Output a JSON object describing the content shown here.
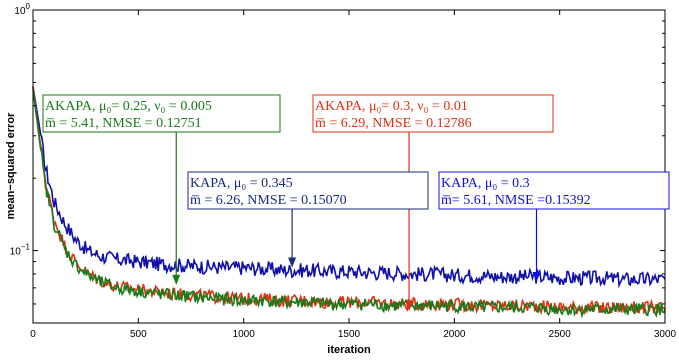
{
  "chart_data": {
    "type": "line",
    "title": "",
    "xlabel": "iteration",
    "ylabel": "mean−squared error",
    "xlim": [
      0,
      3000
    ],
    "ylim": [
      0.05,
      1
    ],
    "yscale": "log",
    "grid": false,
    "x_ticks": [
      0,
      500,
      1000,
      1500,
      2000,
      2500,
      3000
    ],
    "x_tick_labels": [
      "0",
      "500",
      "1000",
      "1500",
      "2000",
      "2500",
      "3000"
    ],
    "y_tick_labels": [
      {
        "value": 1,
        "base": "10",
        "exp": "0"
      },
      {
        "value": 0.1,
        "base": "10",
        "exp": "−1"
      }
    ],
    "series": [
      {
        "color": "#1010a8",
        "x": [
          0,
          30,
          60,
          100,
          150,
          200,
          260,
          320,
          400,
          500,
          600,
          700,
          800,
          900,
          1000,
          1100,
          1200,
          1300,
          1400,
          1500,
          1600,
          1700,
          1800,
          1900,
          2000,
          2100,
          2200,
          2300,
          2400,
          2500,
          2600,
          2700,
          2800,
          2900,
          3000
        ],
        "y": [
          0.48,
          0.33,
          0.22,
          0.16,
          0.13,
          0.112,
          0.1,
          0.095,
          0.092,
          0.09,
          0.088,
          0.087,
          0.086,
          0.085,
          0.085,
          0.084,
          0.083,
          0.083,
          0.082,
          0.082,
          0.081,
          0.081,
          0.08,
          0.08,
          0.079,
          0.079,
          0.078,
          0.078,
          0.078,
          0.077,
          0.077,
          0.077,
          0.076,
          0.076,
          0.076
        ],
        "noise": 0.07
      },
      {
        "color": "#e03010",
        "x": [
          0,
          30,
          60,
          100,
          150,
          200,
          260,
          320,
          400,
          500,
          600,
          700,
          800,
          900,
          1000,
          1100,
          1200,
          1300,
          1400,
          1500,
          1600,
          1700,
          1800,
          1900,
          2000,
          2100,
          2200,
          2300,
          2400,
          2500,
          2600,
          2700,
          2800,
          2900,
          3000
        ],
        "y": [
          0.48,
          0.3,
          0.19,
          0.135,
          0.105,
          0.09,
          0.08,
          0.075,
          0.071,
          0.069,
          0.067,
          0.066,
          0.065,
          0.064,
          0.063,
          0.063,
          0.062,
          0.062,
          0.061,
          0.061,
          0.061,
          0.06,
          0.06,
          0.06,
          0.06,
          0.059,
          0.059,
          0.059,
          0.059,
          0.058,
          0.058,
          0.058,
          0.058,
          0.058,
          0.058
        ],
        "noise": 0.06
      },
      {
        "color": "#1a7a1a",
        "x": [
          0,
          30,
          60,
          100,
          150,
          200,
          260,
          320,
          400,
          500,
          600,
          700,
          800,
          900,
          1000,
          1100,
          1200,
          1300,
          1400,
          1500,
          1600,
          1700,
          1800,
          1900,
          2000,
          2100,
          2200,
          2300,
          2400,
          2500,
          2600,
          2700,
          2800,
          2900,
          3000
        ],
        "y": [
          0.47,
          0.29,
          0.185,
          0.13,
          0.102,
          0.088,
          0.079,
          0.074,
          0.07,
          0.068,
          0.066,
          0.065,
          0.064,
          0.063,
          0.062,
          0.062,
          0.061,
          0.061,
          0.06,
          0.06,
          0.06,
          0.059,
          0.059,
          0.059,
          0.059,
          0.058,
          0.058,
          0.058,
          0.058,
          0.057,
          0.057,
          0.057,
          0.057,
          0.057,
          0.057
        ],
        "noise": 0.06
      }
    ],
    "annotations": [
      {
        "color": "#1a7a1a",
        "line1": "AKAPA, μ₀= 0.25, ν₀ = 0.005",
        "line2": "m̅ = 5.41, NMSE = 0.12751",
        "arrow_x": 680,
        "arrow_y": 0.072
      },
      {
        "color": "#e03010",
        "line1": "AKAPA, μ₀= 0.3, ν₀ = 0.01",
        "line2": "m̅ = 6.29, NMSE = 0.12786",
        "arrow_x": 1785,
        "arrow_y": 0.056
      },
      {
        "color": "#1a2a80",
        "line1": "KAPA, μ₀ = 0.345",
        "line2": "m̅ = 6.26, NMSE = 0.15070",
        "arrow_x": 1230,
        "arrow_y": 0.085
      },
      {
        "color": "#1010e0",
        "line1": "KAPA, μ₀ = 0.3",
        "line2": "m̅= 5.61, NMSE =0.15392",
        "arrow_x": 2390,
        "arrow_y": 0.074
      }
    ]
  }
}
